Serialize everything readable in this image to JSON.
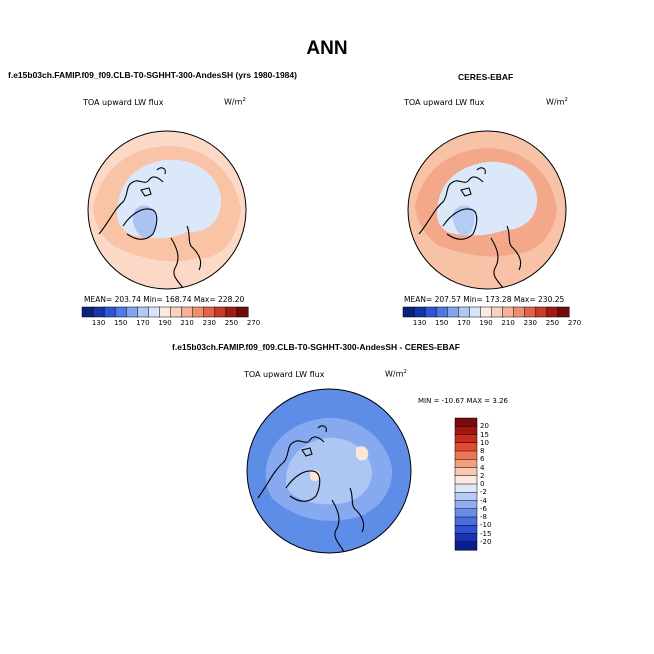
{
  "title": "ANN",
  "panels": {
    "model": {
      "title": "f.e15b03ch.FAMIP.f09_f09.CLB-T0-SGHHT-300-AndesSH (yrs 1980-1984)",
      "variable": "TOA upward LW flux",
      "units": "W/m",
      "units_exp": "2",
      "stats": {
        "mean": "203.74",
        "min": "168.74",
        "max": "228.20"
      },
      "stats_text": "MEAN= 203.74   Min= 168.74   Max= 228.20"
    },
    "obs": {
      "title": "CERES-EBAF",
      "variable": "TOA upward LW flux",
      "units": "W/m",
      "units_exp": "2",
      "stats": {
        "mean": "207.57",
        "min": "173.28",
        "max": "230.25"
      },
      "stats_text": "MEAN= 207.57   Min= 173.28   Max= 230.25"
    },
    "diff": {
      "title": "f.e15b03ch.FAMIP.f09_f09.CLB-T0-SGHHT-300-AndesSH - CERES-EBAF",
      "variable": "TOA upward LW flux",
      "units": "W/m",
      "units_exp": "2",
      "stats_text": "MIN = -10.67 MAX =   3.26"
    }
  },
  "colorbar_abs": {
    "labels": [
      "130",
      "150",
      "170",
      "190",
      "210",
      "230",
      "250",
      "270"
    ],
    "colors": [
      "#08237a",
      "#1535a6",
      "#2d55d6",
      "#4e7ae8",
      "#82a4ef",
      "#b2c8f4",
      "#d8e5fa",
      "#fbece2",
      "#f9d1bd",
      "#f5b299",
      "#ef8e6f",
      "#e3634a",
      "#c93a2a",
      "#a21a16",
      "#730c0c"
    ]
  },
  "colorbar_diff": {
    "labels": [
      "20",
      "15",
      "10",
      "8",
      "6",
      "4",
      "2",
      "0",
      "-2",
      "-4",
      "-6",
      "-8",
      "-10",
      "-15",
      "-20"
    ],
    "colors": [
      "#7a0a0a",
      "#a3150f",
      "#c82a1c",
      "#e04b32",
      "#ee7655",
      "#f59f81",
      "#f9c8b1",
      "#fde9dc",
      "#dce7fa",
      "#b6cbf5",
      "#8fadef",
      "#6a8de9",
      "#4a6ee0",
      "#2e4fd2",
      "#1732b6",
      "#0a1e8c"
    ]
  },
  "map_fill": {
    "model": {
      "outer": "#fbd9c6",
      "ring": "#f9c3a6",
      "inner": "#dbe8fa",
      "low": "#a9c4f2"
    },
    "obs": {
      "outer": "#f8c2a6",
      "ring": "#f4a88a",
      "inner": "#dbe8fa",
      "low": "#b3cbf5"
    },
    "diff": {
      "outer": "#5e8de8",
      "ring": "#86a9ef",
      "inner": "#adc6f4",
      "warm": "#fbe7d8"
    }
  }
}
